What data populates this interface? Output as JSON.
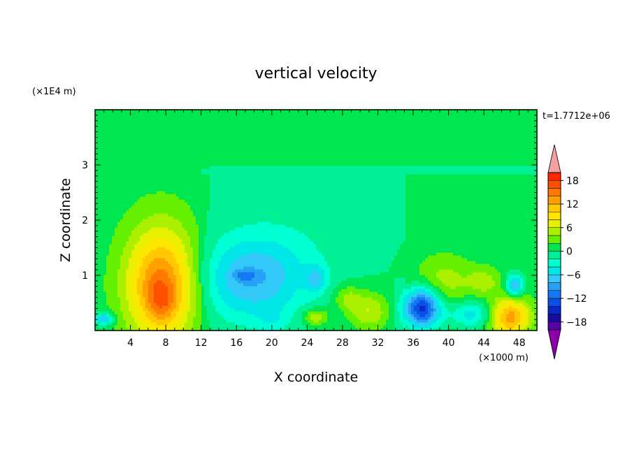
{
  "chart_data": {
    "type": "heatmap",
    "title": "vertical velocity",
    "xlabel": "X coordinate",
    "ylabel": "Z coordinate",
    "x_unit": "(×1000 m)",
    "y_unit": "(×1E4 m)",
    "time_label": "t=1.7712e+06",
    "xlim": [
      0,
      50
    ],
    "ylim": [
      0,
      4
    ],
    "x_ticks": [
      4,
      8,
      12,
      16,
      20,
      24,
      28,
      32,
      36,
      40,
      44,
      48
    ],
    "y_ticks": [
      1,
      2,
      3
    ],
    "colorbar": {
      "levels": [
        -20,
        -18,
        -16,
        -14,
        -12,
        -10,
        -8,
        -6,
        -4,
        -2,
        0,
        2,
        4,
        6,
        8,
        10,
        12,
        14,
        16,
        18,
        20
      ],
      "colors": [
        "#5a00a8",
        "#1a0aa0",
        "#0a28c8",
        "#0a50e6",
        "#1478f0",
        "#28a0f5",
        "#32c8f8",
        "#00e6e6",
        "#00ffd2",
        "#00f096",
        "#00e650",
        "#64f000",
        "#aaf000",
        "#e6f000",
        "#ffe600",
        "#ffc800",
        "#ffa000",
        "#ff7800",
        "#ff5000",
        "#ff2800"
      ],
      "under_color": "#8b00a8",
      "over_color": "#f4a0a0",
      "tick_labels": [
        "18",
        "12",
        "6",
        "0",
        "−6",
        "−12",
        "−18"
      ],
      "tick_values": [
        18,
        12,
        6,
        0,
        -6,
        -12,
        -18
      ]
    },
    "background_value": 1,
    "features": [
      {
        "x": 7.5,
        "z": 0.85,
        "rx": 5.0,
        "rz": 1.3,
        "value": 14
      },
      {
        "x": 7.5,
        "z": 0.55,
        "rx": 2.0,
        "rz": 0.45,
        "value": 4
      },
      {
        "x": 17.5,
        "z": 0.9,
        "rx": 7.5,
        "rz": 0.9,
        "value": -7
      },
      {
        "x": 20.5,
        "z": 1.4,
        "rx": 9.0,
        "rz": 1.1,
        "value": -2
      },
      {
        "x": 17.0,
        "z": 1.0,
        "rx": 1.6,
        "rz": 0.12,
        "value": -4
      },
      {
        "x": 25.0,
        "z": 0.95,
        "rx": 1.5,
        "rz": 0.3,
        "value": -5
      },
      {
        "x": 37.0,
        "z": 0.42,
        "rx": 2.6,
        "rz": 0.45,
        "value": -16
      },
      {
        "x": 42.5,
        "z": 0.3,
        "rx": 3.0,
        "rz": 0.3,
        "value": -6
      },
      {
        "x": 47.0,
        "z": 0.25,
        "rx": 2.8,
        "rz": 0.45,
        "value": 12
      },
      {
        "x": 47.5,
        "z": 0.82,
        "rx": 1.2,
        "rz": 0.25,
        "value": -10
      },
      {
        "x": 31.0,
        "z": 0.35,
        "rx": 3.0,
        "rz": 0.45,
        "value": 6
      },
      {
        "x": 28.5,
        "z": 0.6,
        "rx": 2.0,
        "rz": 0.3,
        "value": 4
      },
      {
        "x": 25.0,
        "z": 0.25,
        "rx": 1.8,
        "rz": 0.2,
        "value": 6
      },
      {
        "x": 39.5,
        "z": 0.9,
        "rx": 4.0,
        "rz": 0.55,
        "value": 4
      },
      {
        "x": 1.0,
        "z": 0.22,
        "rx": 1.3,
        "rz": 0.15,
        "value": -8
      },
      {
        "x": 44.0,
        "z": 0.9,
        "rx": 2.2,
        "rz": 0.3,
        "value": 4
      },
      {
        "x": 20.0,
        "z": 0.2,
        "rx": 2.0,
        "rz": 0.3,
        "value": -2
      }
    ],
    "regions": [
      {
        "x0": 12,
        "x1": 35,
        "z0": 0,
        "z1": 2.95,
        "value": -1
      },
      {
        "x0": 0,
        "x1": 50,
        "z0": 2.85,
        "z1": 2.98,
        "value": -1
      }
    ]
  }
}
